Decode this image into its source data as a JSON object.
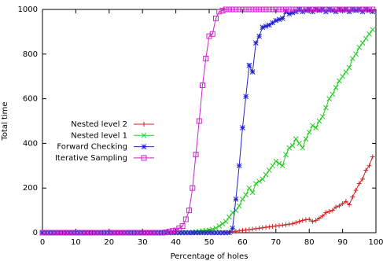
{
  "chart_data": {
    "type": "line",
    "x_label": "Percentage of holes",
    "y_label": "Total time",
    "x": [
      0,
      1,
      2,
      3,
      4,
      5,
      6,
      7,
      8,
      9,
      10,
      11,
      12,
      13,
      14,
      15,
      16,
      17,
      18,
      19,
      20,
      21,
      22,
      23,
      24,
      25,
      26,
      27,
      28,
      29,
      30,
      31,
      32,
      33,
      34,
      35,
      36,
      37,
      38,
      39,
      40,
      41,
      42,
      43,
      44,
      45,
      46,
      47,
      48,
      49,
      50,
      51,
      52,
      53,
      54,
      55,
      56,
      57,
      58,
      59,
      60,
      61,
      62,
      63,
      64,
      65,
      66,
      67,
      68,
      69,
      70,
      71,
      72,
      73,
      74,
      75,
      76,
      77,
      78,
      79,
      80,
      81,
      82,
      83,
      84,
      85,
      86,
      87,
      88,
      89,
      90,
      91,
      92,
      93,
      94,
      95,
      96,
      97,
      98,
      99
    ],
    "series": [
      {
        "name": "Nested level 2",
        "color": "#cc2222",
        "marker": "plus",
        "values": [
          0,
          0,
          0,
          0,
          0,
          0,
          0,
          0,
          0,
          0,
          0,
          0,
          0,
          0,
          0,
          0,
          0,
          0,
          0,
          0,
          0,
          0,
          0,
          0,
          0,
          0,
          0,
          0,
          0,
          0,
          0,
          0,
          0,
          0,
          0,
          0,
          0,
          0,
          0,
          0,
          0,
          0,
          0,
          0,
          0,
          0,
          0,
          0,
          0,
          0,
          0,
          0,
          0,
          0,
          0,
          2,
          3,
          5,
          6,
          8,
          10,
          12,
          14,
          16,
          18,
          20,
          22,
          24,
          26,
          28,
          30,
          32,
          34,
          36,
          38,
          40,
          45,
          50,
          55,
          58,
          60,
          50,
          55,
          65,
          75,
          90,
          95,
          100,
          115,
          120,
          130,
          140,
          125,
          160,
          190,
          220,
          240,
          280,
          300,
          340
        ]
      },
      {
        "name": "Nested level 1",
        "color": "#22cc22",
        "marker": "cross",
        "values": [
          0,
          0,
          0,
          0,
          0,
          0,
          0,
          0,
          0,
          0,
          0,
          0,
          0,
          0,
          0,
          0,
          0,
          0,
          0,
          0,
          0,
          0,
          0,
          0,
          0,
          0,
          0,
          0,
          0,
          0,
          0,
          0,
          0,
          0,
          0,
          0,
          0,
          0,
          0,
          0,
          0,
          0,
          0,
          0,
          0,
          2,
          4,
          6,
          8,
          9,
          10,
          15,
          20,
          30,
          40,
          50,
          70,
          90,
          100,
          120,
          150,
          170,
          200,
          180,
          220,
          230,
          240,
          260,
          280,
          300,
          320,
          310,
          300,
          350,
          380,
          390,
          420,
          400,
          380,
          420,
          450,
          480,
          470,
          500,
          520,
          560,
          600,
          620,
          650,
          680,
          700,
          720,
          740,
          780,
          800,
          830,
          850,
          870,
          890,
          910
        ]
      },
      {
        "name": "Forward Checking",
        "color": "#2222cc",
        "marker": "star",
        "values": [
          0,
          0,
          0,
          0,
          0,
          0,
          0,
          0,
          0,
          0,
          0,
          0,
          0,
          0,
          0,
          0,
          0,
          0,
          0,
          0,
          0,
          0,
          0,
          0,
          0,
          0,
          0,
          0,
          0,
          0,
          0,
          0,
          0,
          0,
          0,
          0,
          0,
          0,
          0,
          0,
          0,
          0,
          0,
          0,
          0,
          0,
          0,
          0,
          0,
          0,
          0,
          0,
          0,
          0,
          0,
          0,
          0,
          20,
          150,
          300,
          470,
          610,
          750,
          720,
          850,
          880,
          920,
          925,
          930,
          940,
          950,
          955,
          960,
          990,
          980,
          985,
          990,
          1000,
          990,
          995,
          1000,
          990,
          1000,
          995,
          1000,
          990,
          1000,
          995,
          990,
          1000,
          995,
          1000,
          990,
          1000,
          995,
          1000,
          990,
          1000,
          995,
          990
        ]
      },
      {
        "name": "Iterative Sampling",
        "color": "#cc22cc",
        "marker": "square",
        "values": [
          0,
          0,
          0,
          0,
          0,
          0,
          0,
          0,
          0,
          0,
          0,
          0,
          0,
          0,
          0,
          0,
          0,
          0,
          0,
          0,
          0,
          0,
          0,
          0,
          0,
          0,
          0,
          0,
          0,
          0,
          0,
          0,
          0,
          0,
          0,
          0,
          0,
          2,
          5,
          8,
          10,
          20,
          30,
          60,
          100,
          200,
          350,
          500,
          660,
          780,
          880,
          890,
          960,
          990,
          995,
          1000,
          1000,
          1000,
          1000,
          1000,
          1000,
          1000,
          1000,
          1000,
          1000,
          1000,
          1000,
          1000,
          1000,
          1000,
          1000,
          1000,
          1000,
          1000,
          1000,
          1000,
          1000,
          1000,
          1000,
          1000,
          1000,
          1000,
          1000,
          1000,
          1000,
          1000,
          1000,
          1000,
          1000,
          1000,
          1000,
          1000,
          1000,
          1000,
          1000,
          1000,
          1000,
          1000,
          1000,
          1000
        ]
      }
    ],
    "xlim": [
      0,
      100
    ],
    "xticks": [
      0,
      10,
      20,
      30,
      40,
      50,
      60,
      70,
      80,
      90,
      100
    ],
    "ylim": [
      0,
      1000
    ],
    "yticks": [
      0,
      200,
      400,
      600,
      800,
      1000
    ],
    "legend": "left"
  }
}
